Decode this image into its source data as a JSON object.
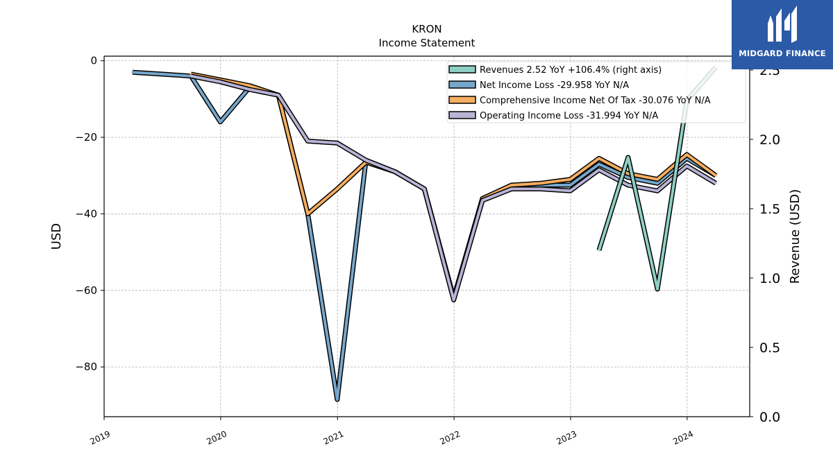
{
  "chart_data": {
    "type": "line",
    "title": "KRON",
    "subtitle": "Income Statement",
    "ylabel": "USD",
    "ylabel_right": "Revenue (USD)",
    "ylim": [
      -93,
      1.2
    ],
    "ylim_right": [
      0,
      2.6
    ],
    "y_ticks": [
      0,
      -20,
      -40,
      -60,
      -80
    ],
    "y_tick_labels": [
      "0",
      "−20",
      "−40",
      "−60",
      "−80"
    ],
    "y_right_ticks": [
      0.0,
      0.5,
      1.0,
      1.5,
      2.0,
      2.5
    ],
    "y_right_tick_labels": [
      "0.0",
      "0.5",
      "1.0",
      "1.5",
      "2.0",
      "2.5"
    ],
    "x_ticks": [
      "2019-01-01",
      "2020-01-01",
      "2021-01-01",
      "2022-01-01",
      "2023-01-01",
      "2024-01-01"
    ],
    "x_tick_labels": [
      "2019",
      "2020",
      "2021",
      "2022",
      "2023",
      "2024"
    ],
    "xlim": [
      "2019-01-01",
      "2024-07-15"
    ],
    "grid": true,
    "legend_position": "top-right",
    "series": [
      {
        "name": "Net Income Loss",
        "legend_label": "Net Income Loss  -29.958 YoY N/A",
        "color": "#76a7cb",
        "axis": "left",
        "x": [
          "2019-03-31",
          "2019-06-30",
          "2019-09-30",
          "2019-12-31",
          "2020-03-31",
          "2020-06-30",
          "2020-09-30",
          "2020-12-31",
          "2021-03-31",
          "2021-06-30",
          "2021-09-30",
          "2021-12-31",
          "2022-03-31",
          "2022-06-30",
          "2022-09-30",
          "2022-12-31",
          "2023-03-31",
          "2023-06-30",
          "2023-09-30",
          "2023-12-31",
          "2024-03-31"
        ],
        "y": [
          -3.0,
          -3.5,
          -4.0,
          -16.0,
          -7.0,
          -9.0,
          -40.0,
          -88.5,
          -26.0,
          -29.0,
          -33.5,
          -62.0,
          -36.0,
          -32.5,
          -32.5,
          -32.5,
          -27.0,
          -30.5,
          -32.0,
          -25.5,
          -30.0
        ]
      },
      {
        "name": "Comprehensive Income Net Of Tax",
        "legend_label": "Comprehensive Income Net Of Tax  -30.076 YoY N/A",
        "color": "#f7ae60",
        "axis": "left",
        "x": [
          "2019-09-30",
          "2019-12-31",
          "2020-03-31",
          "2020-06-30",
          "2020-09-30",
          "2020-12-31",
          "2021-03-31",
          "2021-06-30",
          "2021-09-30",
          "2021-12-31",
          "2022-03-31",
          "2022-06-30",
          "2022-09-30",
          "2022-12-31",
          "2023-03-31",
          "2023-06-30",
          "2023-09-30",
          "2023-12-31",
          "2024-03-31"
        ],
        "y": [
          -3.5,
          -5.0,
          -6.5,
          -9.0,
          -40.0,
          -33.5,
          -26.5,
          -29.0,
          -33.5,
          -62.0,
          -36.0,
          -32.5,
          -32.0,
          -31.0,
          -25.5,
          -29.5,
          -31.0,
          -24.5,
          -30.0
        ]
      },
      {
        "name": "Operating Income Loss",
        "legend_label": "Operating Income Loss  -31.994 YoY N/A",
        "color": "#b8b4d6",
        "axis": "left",
        "x": [
          "2019-09-30",
          "2019-12-31",
          "2020-03-31",
          "2020-06-30",
          "2020-09-30",
          "2020-12-31",
          "2021-03-31",
          "2021-06-30",
          "2021-09-30",
          "2021-12-31",
          "2022-03-31",
          "2022-06-30",
          "2022-09-30",
          "2022-12-31",
          "2023-03-31",
          "2023-06-30",
          "2023-09-30",
          "2023-12-31",
          "2024-03-31"
        ],
        "y": [
          -4.0,
          -5.5,
          -7.5,
          -9.0,
          -21.0,
          -21.5,
          -26.0,
          -29.0,
          -33.5,
          -62.5,
          -36.5,
          -33.5,
          -33.5,
          -34.0,
          -28.5,
          -32.5,
          -34.0,
          -27.5,
          -32.0
        ]
      },
      {
        "name": "Revenues",
        "legend_label": "Revenues  2.52 YoY +106.4% (right axis)",
        "color": "#8ed0c3",
        "axis": "right",
        "x": [
          "2023-03-31",
          "2023-06-30",
          "2023-09-30",
          "2023-12-31",
          "2024-03-31"
        ],
        "y": [
          1.2,
          1.87,
          0.92,
          2.28,
          2.52
        ]
      }
    ],
    "legend_order": [
      "Revenues",
      "Net Income Loss",
      "Comprehensive Income Net Of Tax",
      "Operating Income Loss"
    ]
  },
  "logo": {
    "text": "MIDGARD FINANCE",
    "background": "#2b5aa6"
  }
}
